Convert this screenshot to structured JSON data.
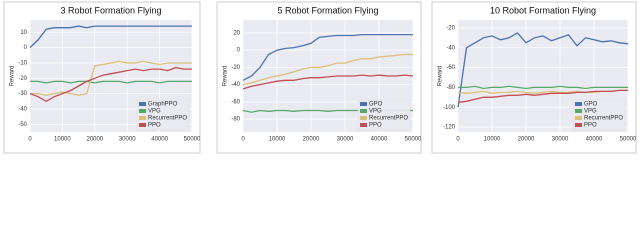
{
  "chart_data": [
    {
      "type": "line",
      "title": "3 Robot Formation Flying",
      "ylabel": "Reward",
      "x": [
        0,
        2500,
        5000,
        7500,
        10000,
        12500,
        15000,
        17500,
        20000,
        22500,
        25000,
        27500,
        30000,
        32500,
        35000,
        37500,
        40000,
        42500,
        45000,
        47500,
        50000
      ],
      "xlim": [
        0,
        50000
      ],
      "xticks": [
        0,
        10000,
        20000,
        30000,
        40000,
        50000
      ],
      "ylim": [
        -55,
        18
      ],
      "yticks": [
        10,
        0,
        -10,
        -20,
        -30,
        -40,
        -50
      ],
      "grid": true,
      "legend": "lower right",
      "series": [
        {
          "name": "GraphPPO",
          "color": "#4c72b0",
          "values": [
            0,
            5,
            12,
            13,
            13,
            13,
            14,
            13,
            14,
            14,
            14,
            14,
            14,
            14,
            14,
            14,
            14,
            14,
            14,
            14,
            14
          ]
        },
        {
          "name": "VPG",
          "color": "#55a868",
          "values": [
            -22,
            -22,
            -23,
            -22,
            -22,
            -23,
            -22,
            -22,
            -23,
            -22,
            -22,
            -22,
            -23,
            -22,
            -22,
            -22,
            -23,
            -22,
            -22,
            -22,
            -22
          ]
        },
        {
          "name": "RecurrentPPO",
          "color": "#dcc07a",
          "values": [
            -30,
            -30,
            -31,
            -30,
            -29,
            -30,
            -31,
            -30,
            -12,
            -11,
            -10,
            -9,
            -10,
            -10,
            -9,
            -10,
            -11,
            -10,
            -10,
            -10,
            -10
          ]
        },
        {
          "name": "PPO",
          "color": "#c44e52",
          "values": [
            -30,
            -32,
            -35,
            -32,
            -30,
            -28,
            -25,
            -22,
            -20,
            -18,
            -17,
            -16,
            -15,
            -14,
            -15,
            -14,
            -14,
            -15,
            -13,
            -14,
            -14
          ]
        }
      ]
    },
    {
      "type": "line",
      "title": "5 Robot Formation Flying",
      "ylabel": "Reward",
      "x": [
        0,
        2500,
        5000,
        7500,
        10000,
        12500,
        15000,
        17500,
        20000,
        22500,
        25000,
        27500,
        30000,
        32500,
        35000,
        37500,
        40000,
        42500,
        45000,
        47500,
        50000
      ],
      "xlim": [
        0,
        50000
      ],
      "xticks": [
        0,
        10000,
        20000,
        30000,
        40000,
        50000
      ],
      "ylim": [
        -95,
        35
      ],
      "yticks": [
        20,
        0,
        -20,
        -40,
        -60,
        -80
      ],
      "grid": true,
      "legend": "lower right",
      "series": [
        {
          "name": "GPO",
          "color": "#4c72b0",
          "values": [
            -35,
            -30,
            -20,
            -5,
            0,
            2,
            3,
            5,
            8,
            15,
            16,
            17,
            17,
            17,
            18,
            18,
            18,
            18,
            18,
            18,
            18
          ]
        },
        {
          "name": "VPG",
          "color": "#55a868",
          "values": [
            -70,
            -72,
            -70,
            -71,
            -70,
            -70,
            -71,
            -70,
            -70,
            -70,
            -71,
            -70,
            -70,
            -70,
            -70,
            -71,
            -70,
            -70,
            -70,
            -70,
            -70
          ]
        },
        {
          "name": "RecurrentPPO",
          "color": "#dcc07a",
          "values": [
            -40,
            -38,
            -35,
            -32,
            -30,
            -28,
            -25,
            -22,
            -20,
            -20,
            -18,
            -15,
            -15,
            -12,
            -10,
            -10,
            -8,
            -7,
            -6,
            -5,
            -5
          ]
        },
        {
          "name": "PPO",
          "color": "#c44e52",
          "values": [
            -45,
            -42,
            -40,
            -38,
            -36,
            -35,
            -35,
            -33,
            -32,
            -32,
            -31,
            -30,
            -30,
            -30,
            -29,
            -30,
            -29,
            -30,
            -30,
            -29,
            -30
          ]
        }
      ]
    },
    {
      "type": "line",
      "title": "10 Robot Formation Flying",
      "ylabel": "Reward",
      "x": [
        0,
        2500,
        5000,
        7500,
        10000,
        12500,
        15000,
        17500,
        20000,
        22500,
        25000,
        27500,
        30000,
        32500,
        35000,
        37500,
        40000,
        42500,
        45000,
        47500,
        50000
      ],
      "xlim": [
        0,
        50000
      ],
      "xticks": [
        0,
        10000,
        20000,
        30000,
        40000,
        50000
      ],
      "ylim": [
        -125,
        -12
      ],
      "yticks": [
        -20,
        -40,
        -60,
        -80,
        -100,
        -120
      ],
      "grid": true,
      "legend": "lower right",
      "series": [
        {
          "name": "GPO",
          "color": "#4c72b0",
          "values": [
            -100,
            -40,
            -35,
            -30,
            -28,
            -32,
            -30,
            -25,
            -35,
            -30,
            -28,
            -33,
            -30,
            -27,
            -38,
            -30,
            -32,
            -34,
            -33,
            -35,
            -36
          ]
        },
        {
          "name": "VPG",
          "color": "#55a868",
          "values": [
            -80,
            -80,
            -79,
            -81,
            -80,
            -80,
            -79,
            -80,
            -81,
            -80,
            -80,
            -80,
            -79,
            -80,
            -80,
            -81,
            -80,
            -80,
            -80,
            -80,
            -80
          ]
        },
        {
          "name": "RecurrentPPO",
          "color": "#dcc07a",
          "values": [
            -85,
            -86,
            -85,
            -84,
            -86,
            -85,
            -85,
            -84,
            -85,
            -86,
            -85,
            -84,
            -85,
            -85,
            -84,
            -85,
            -85,
            -84,
            -84,
            -83,
            -83
          ]
        },
        {
          "name": "PPO",
          "color": "#c44e52",
          "values": [
            -95,
            -94,
            -92,
            -90,
            -90,
            -89,
            -88,
            -88,
            -87,
            -88,
            -87,
            -86,
            -86,
            -86,
            -85,
            -85,
            -84,
            -84,
            -84,
            -83,
            -83
          ]
        }
      ]
    }
  ]
}
